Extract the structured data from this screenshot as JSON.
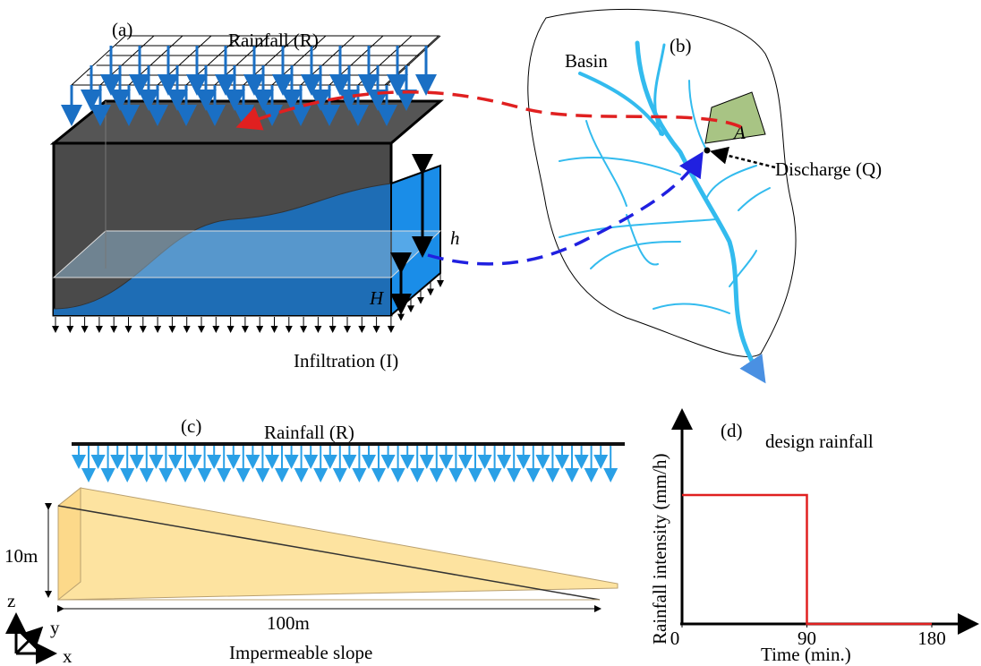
{
  "panel_a": {
    "label": "(a)",
    "rainfall": "Rainfall (R)",
    "infiltration": "Infiltration (I)",
    "h": "h",
    "H": "H"
  },
  "panel_b": {
    "label": "(b)",
    "basin": "Basin",
    "A": "A",
    "discharge": "Discharge (Q)"
  },
  "panel_c": {
    "label": "(c)",
    "rainfall": "Rainfall (R)",
    "height": "10m",
    "length": "100m",
    "slope": "Impermeable slope",
    "axes": [
      "z",
      "y",
      "x"
    ]
  },
  "panel_d": {
    "label": "(d)",
    "title": "design rainfall",
    "y_label": "Rainfall intensity (mm/h)",
    "x_label": "Time (min.)",
    "xticks": [
      0,
      90,
      180
    ]
  }
}
